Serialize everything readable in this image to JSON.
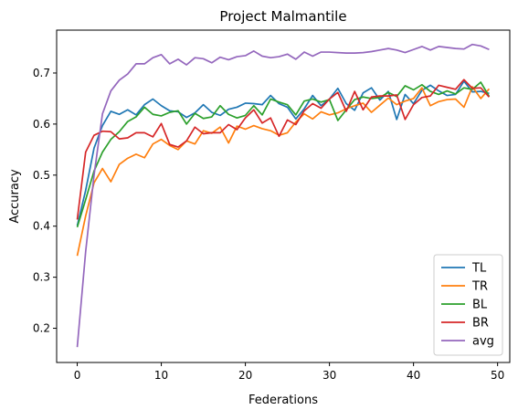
{
  "chart_data": {
    "type": "line",
    "title": "Project Malmantile",
    "xlabel": "Federations",
    "ylabel": "Accuracy",
    "xlim": [
      -2.45,
      51.45
    ],
    "ylim": [
      0.133,
      0.784
    ],
    "xticks": [
      0,
      10,
      20,
      30,
      40,
      50
    ],
    "yticks": [
      0.2,
      0.3,
      0.4,
      0.5,
      0.6,
      0.7
    ],
    "ytick_labels": [
      "0.2",
      "0.3",
      "0.4",
      "0.5",
      "0.6",
      "0.7"
    ],
    "grid": false,
    "legend_position": "lower-right",
    "x": [
      0,
      1,
      2,
      3,
      4,
      5,
      6,
      7,
      8,
      9,
      10,
      11,
      12,
      13,
      14,
      15,
      16,
      17,
      18,
      19,
      20,
      21,
      22,
      23,
      24,
      25,
      26,
      27,
      28,
      29,
      30,
      31,
      32,
      33,
      34,
      35,
      36,
      37,
      38,
      39,
      40,
      41,
      42,
      43,
      44,
      45,
      46,
      47,
      48,
      49
    ],
    "series": [
      {
        "name": "TL",
        "color": "#1f77b4",
        "values": [
          0.401,
          0.47,
          0.553,
          0.597,
          0.625,
          0.619,
          0.628,
          0.618,
          0.638,
          0.649,
          0.636,
          0.626,
          0.624,
          0.613,
          0.622,
          0.638,
          0.623,
          0.617,
          0.629,
          0.633,
          0.641,
          0.64,
          0.638,
          0.656,
          0.64,
          0.633,
          0.61,
          0.63,
          0.656,
          0.636,
          0.649,
          0.67,
          0.64,
          0.627,
          0.661,
          0.671,
          0.647,
          0.664,
          0.609,
          0.658,
          0.64,
          0.666,
          0.676,
          0.665,
          0.656,
          0.658,
          0.684,
          0.663,
          0.664,
          0.66
        ]
      },
      {
        "name": "TR",
        "color": "#ff7f0e",
        "values": [
          0.342,
          0.42,
          0.485,
          0.513,
          0.487,
          0.521,
          0.533,
          0.541,
          0.534,
          0.561,
          0.57,
          0.558,
          0.55,
          0.567,
          0.561,
          0.587,
          0.582,
          0.594,
          0.563,
          0.596,
          0.59,
          0.597,
          0.591,
          0.587,
          0.578,
          0.583,
          0.604,
          0.62,
          0.61,
          0.624,
          0.618,
          0.622,
          0.63,
          0.636,
          0.641,
          0.623,
          0.637,
          0.651,
          0.638,
          0.645,
          0.65,
          0.671,
          0.636,
          0.644,
          0.648,
          0.649,
          0.633,
          0.673,
          0.65,
          0.669
        ]
      },
      {
        "name": "BL",
        "color": "#2ca02c",
        "values": [
          0.398,
          0.452,
          0.508,
          0.545,
          0.57,
          0.585,
          0.605,
          0.614,
          0.633,
          0.619,
          0.616,
          0.623,
          0.626,
          0.6,
          0.621,
          0.611,
          0.614,
          0.636,
          0.619,
          0.612,
          0.617,
          0.636,
          0.618,
          0.649,
          0.643,
          0.638,
          0.618,
          0.645,
          0.649,
          0.643,
          0.648,
          0.607,
          0.628,
          0.648,
          0.653,
          0.65,
          0.652,
          0.662,
          0.654,
          0.675,
          0.667,
          0.677,
          0.664,
          0.658,
          0.665,
          0.659,
          0.671,
          0.668,
          0.682,
          0.654
        ]
      },
      {
        "name": "BR",
        "color": "#d62728",
        "values": [
          0.413,
          0.545,
          0.578,
          0.586,
          0.585,
          0.571,
          0.573,
          0.583,
          0.583,
          0.575,
          0.601,
          0.56,
          0.555,
          0.567,
          0.594,
          0.581,
          0.583,
          0.583,
          0.599,
          0.589,
          0.612,
          0.628,
          0.602,
          0.612,
          0.576,
          0.608,
          0.599,
          0.626,
          0.64,
          0.631,
          0.649,
          0.662,
          0.625,
          0.664,
          0.628,
          0.653,
          0.655,
          0.655,
          0.657,
          0.609,
          0.638,
          0.652,
          0.655,
          0.676,
          0.672,
          0.668,
          0.687,
          0.67,
          0.671,
          0.653
        ]
      },
      {
        "name": "avg",
        "color": "#9467bd",
        "values": [
          0.163,
          0.35,
          0.5,
          0.62,
          0.665,
          0.686,
          0.698,
          0.718,
          0.718,
          0.73,
          0.736,
          0.718,
          0.727,
          0.716,
          0.73,
          0.728,
          0.72,
          0.731,
          0.726,
          0.732,
          0.734,
          0.743,
          0.733,
          0.73,
          0.732,
          0.737,
          0.727,
          0.741,
          0.733,
          0.741,
          0.741,
          0.74,
          0.739,
          0.739,
          0.74,
          0.742,
          0.745,
          0.748,
          0.745,
          0.74,
          0.746,
          0.752,
          0.745,
          0.752,
          0.75,
          0.748,
          0.747,
          0.756,
          0.753,
          0.746
        ]
      }
    ]
  }
}
